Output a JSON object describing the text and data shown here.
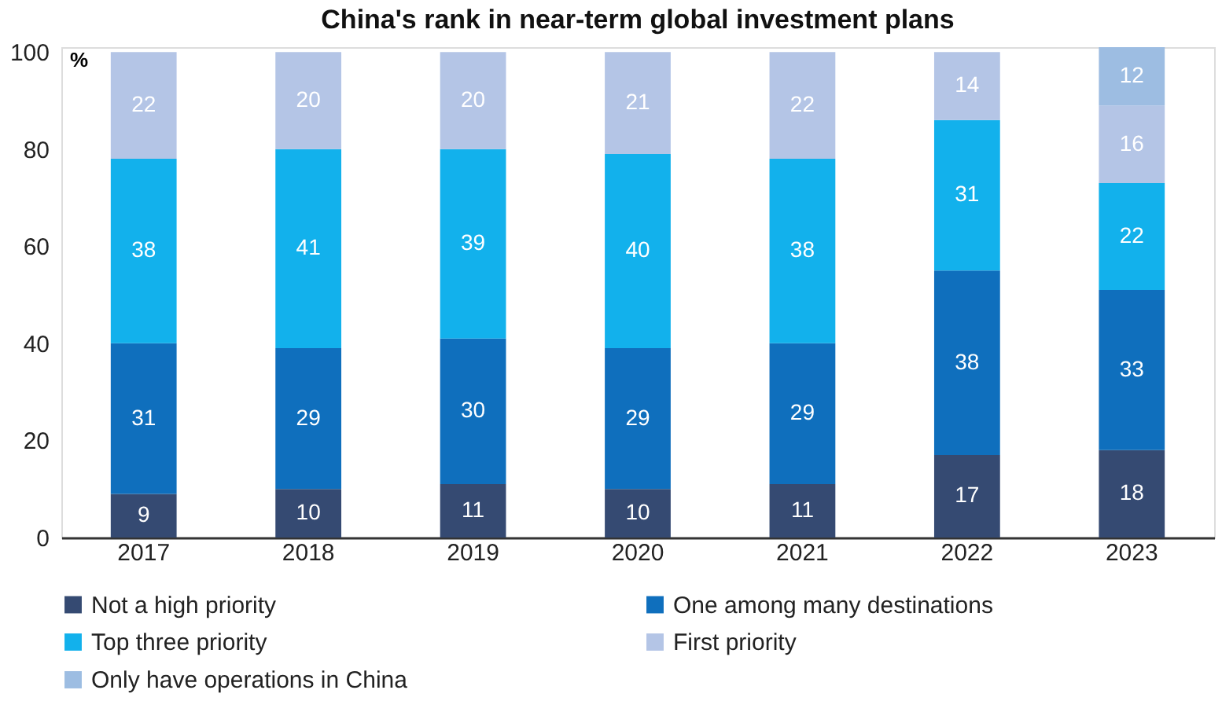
{
  "chart_data": {
    "type": "bar",
    "stacked": true,
    "title": "China's rank in near-term global investment plans",
    "ylabel": "%",
    "categories": [
      "2017",
      "2018",
      "2019",
      "2020",
      "2021",
      "2022",
      "2023"
    ],
    "series": [
      {
        "name": "Not a high priority",
        "color": "#354a72",
        "values": [
          9,
          10,
          11,
          10,
          11,
          17,
          18
        ]
      },
      {
        "name": "One among many destinations",
        "color": "#0f6fbd",
        "values": [
          31,
          29,
          30,
          29,
          29,
          38,
          33
        ]
      },
      {
        "name": "Top three priority",
        "color": "#12b1ec",
        "values": [
          38,
          41,
          39,
          40,
          38,
          31,
          22
        ]
      },
      {
        "name": "First priority",
        "color": "#b4c5e6",
        "values": [
          22,
          20,
          20,
          21,
          22,
          14,
          16
        ]
      },
      {
        "name": "Only have operations in China",
        "color": "#9dbde2",
        "values": [
          null,
          null,
          null,
          null,
          null,
          null,
          12
        ]
      }
    ],
    "ylim": [
      0,
      101
    ],
    "yticks": [
      0,
      20,
      40,
      60,
      80,
      100
    ],
    "grid": false,
    "legend": "bottom",
    "data_labels": true
  }
}
